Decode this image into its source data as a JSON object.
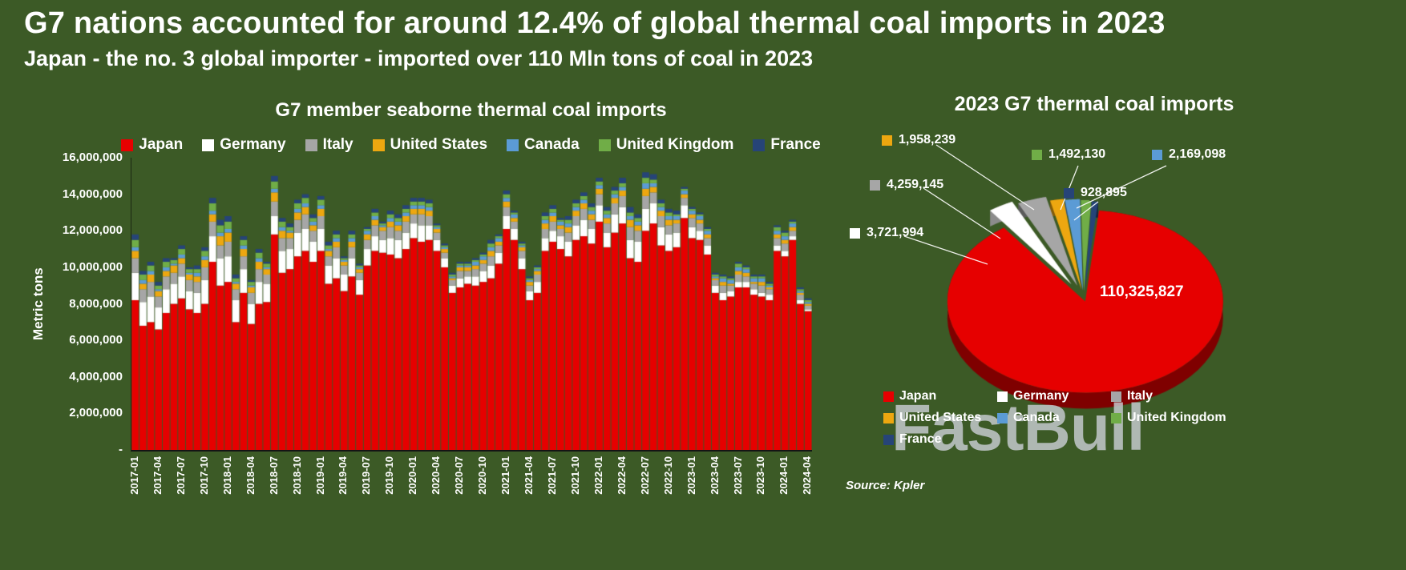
{
  "page": {
    "background": "#3c5a26"
  },
  "header": {
    "title": "G7 nations accounted for around 12.4% of global thermal coal imports in 2023",
    "subtitle": "Japan - the no. 3 global importer - imported over 110 Mln tons of coal in 2023"
  },
  "source": "Source: Kpler",
  "watermark": "FastBull",
  "chart_data": [
    {
      "type": "bar",
      "stacked": true,
      "title": "G7 member seaborne thermal coal imports",
      "ylabel": "Metric tons",
      "xlabel": "",
      "ylim": [
        0,
        16000000
      ],
      "grid": false,
      "legend_position": "top",
      "values_unit": "million metric tons",
      "y_ticks_top_to_bottom": [
        "16,000,000",
        "14,000,000",
        "12,000,000",
        "10,000,000",
        "8,000,000",
        "6,000,000",
        "4,000,000",
        "2,000,000",
        "-"
      ],
      "x_tick_step": 3,
      "categories": [
        "2017-01",
        "2017-02",
        "2017-03",
        "2017-04",
        "2017-05",
        "2017-06",
        "2017-07",
        "2017-08",
        "2017-09",
        "2017-10",
        "2017-11",
        "2017-12",
        "2018-01",
        "2018-02",
        "2018-03",
        "2018-04",
        "2018-05",
        "2018-06",
        "2018-07",
        "2018-08",
        "2018-09",
        "2018-10",
        "2018-11",
        "2018-12",
        "2019-01",
        "2019-02",
        "2019-03",
        "2019-04",
        "2019-05",
        "2019-06",
        "2019-07",
        "2019-08",
        "2019-09",
        "2019-10",
        "2019-11",
        "2019-12",
        "2020-01",
        "2020-02",
        "2020-03",
        "2020-04",
        "2020-05",
        "2020-06",
        "2020-07",
        "2020-08",
        "2020-09",
        "2020-10",
        "2020-11",
        "2020-12",
        "2021-01",
        "2021-02",
        "2021-03",
        "2021-04",
        "2021-05",
        "2021-06",
        "2021-07",
        "2021-08",
        "2021-09",
        "2021-10",
        "2021-11",
        "2021-12",
        "2022-01",
        "2022-02",
        "2022-03",
        "2022-04",
        "2022-05",
        "2022-06",
        "2022-07",
        "2022-08",
        "2022-09",
        "2022-10",
        "2022-11",
        "2022-12",
        "2023-01",
        "2023-02",
        "2023-03",
        "2023-04",
        "2023-05",
        "2023-06",
        "2023-07",
        "2023-08",
        "2023-09",
        "2023-10",
        "2023-11",
        "2023-12",
        "2024-01",
        "2024-02",
        "2024-03",
        "2024-04"
      ],
      "series": [
        {
          "name": "Japan",
          "color": "#e60000",
          "values": [
            8.2,
            6.8,
            7.0,
            6.6,
            7.5,
            8.0,
            8.3,
            7.7,
            7.5,
            8.0,
            10.3,
            9.0,
            9.2,
            7.0,
            8.6,
            6.9,
            8.0,
            8.1,
            11.8,
            9.7,
            9.9,
            10.6,
            10.9,
            10.3,
            10.9,
            9.1,
            9.4,
            8.7,
            9.5,
            8.5,
            10.1,
            10.9,
            10.8,
            10.7,
            10.5,
            11.0,
            11.6,
            11.4,
            11.5,
            10.9,
            10.0,
            8.6,
            8.9,
            9.1,
            9.0,
            9.2,
            9.4,
            10.2,
            12.1,
            11.5,
            9.9,
            8.2,
            8.6,
            10.9,
            11.4,
            11.0,
            10.6,
            11.5,
            11.7,
            11.3,
            12.5,
            11.1,
            11.9,
            12.4,
            10.5,
            10.3,
            12.0,
            12.4,
            11.2,
            10.9,
            11.1,
            12.7,
            11.6,
            11.5,
            10.7,
            8.6,
            8.2,
            8.4,
            8.9,
            8.9,
            8.5,
            8.4,
            8.2,
            10.9,
            10.6,
            11.5,
            8.0,
            7.6
          ]
        },
        {
          "name": "Germany",
          "color": "#ffffff",
          "values": [
            1.5,
            1.3,
            1.4,
            1.2,
            1.3,
            1.1,
            1.2,
            1.0,
            1.1,
            1.3,
            1.4,
            1.5,
            1.4,
            1.2,
            1.3,
            1.1,
            1.2,
            1.0,
            1.0,
            1.2,
            1.1,
            1.3,
            1.2,
            1.1,
            1.2,
            1.0,
            1.1,
            0.9,
            1.0,
            0.8,
            0.9,
            0.8,
            0.7,
            0.9,
            1.0,
            0.9,
            0.8,
            0.9,
            0.8,
            0.6,
            0.5,
            0.4,
            0.5,
            0.4,
            0.5,
            0.6,
            0.7,
            0.6,
            0.7,
            0.6,
            0.6,
            0.5,
            0.6,
            0.7,
            0.6,
            0.7,
            0.8,
            0.8,
            0.9,
            0.8,
            0.9,
            0.8,
            1.0,
            0.9,
            1.0,
            1.1,
            1.2,
            1.1,
            1.0,
            0.9,
            0.8,
            0.7,
            0.6,
            0.5,
            0.5,
            0.4,
            0.4,
            0.3,
            0.3,
            0.3,
            0.3,
            0.2,
            0.3,
            0.3,
            0.3,
            0.2,
            0.2,
            0.1
          ]
        },
        {
          "name": "Italy",
          "color": "#a6a6a6",
          "values": [
            0.8,
            0.7,
            0.8,
            0.6,
            0.7,
            0.6,
            0.7,
            0.6,
            0.6,
            0.7,
            0.8,
            0.7,
            0.8,
            0.6,
            0.7,
            0.6,
            0.7,
            0.5,
            0.8,
            0.7,
            0.6,
            0.7,
            0.8,
            0.6,
            0.7,
            0.5,
            0.6,
            0.5,
            0.6,
            0.4,
            0.5,
            0.6,
            0.5,
            0.6,
            0.5,
            0.6,
            0.5,
            0.6,
            0.5,
            0.4,
            0.3,
            0.3,
            0.4,
            0.3,
            0.4,
            0.4,
            0.5,
            0.4,
            0.5,
            0.4,
            0.4,
            0.3,
            0.4,
            0.5,
            0.5,
            0.4,
            0.5,
            0.5,
            0.6,
            0.5,
            0.6,
            0.5,
            0.6,
            0.6,
            0.7,
            0.6,
            0.7,
            0.6,
            0.6,
            0.5,
            0.5,
            0.4,
            0.5,
            0.4,
            0.4,
            0.3,
            0.4,
            0.3,
            0.4,
            0.3,
            0.3,
            0.4,
            0.3,
            0.4,
            0.4,
            0.3,
            0.3,
            0.2
          ]
        },
        {
          "name": "United States",
          "color": "#eda710",
          "values": [
            0.4,
            0.3,
            0.4,
            0.3,
            0.3,
            0.4,
            0.3,
            0.3,
            0.3,
            0.4,
            0.4,
            0.5,
            0.5,
            0.3,
            0.4,
            0.3,
            0.4,
            0.3,
            0.5,
            0.4,
            0.3,
            0.4,
            0.4,
            0.3,
            0.4,
            0.3,
            0.3,
            0.2,
            0.3,
            0.2,
            0.3,
            0.3,
            0.2,
            0.3,
            0.3,
            0.3,
            0.3,
            0.3,
            0.3,
            0.2,
            0.2,
            0.1,
            0.2,
            0.2,
            0.2,
            0.2,
            0.3,
            0.2,
            0.3,
            0.2,
            0.2,
            0.2,
            0.2,
            0.3,
            0.3,
            0.2,
            0.3,
            0.3,
            0.3,
            0.3,
            0.3,
            0.3,
            0.3,
            0.3,
            0.4,
            0.3,
            0.4,
            0.3,
            0.3,
            0.3,
            0.2,
            0.2,
            0.2,
            0.2,
            0.2,
            0.1,
            0.2,
            0.1,
            0.2,
            0.2,
            0.1,
            0.2,
            0.1,
            0.2,
            0.2,
            0.2,
            0.1,
            0.1
          ]
        },
        {
          "name": "Canada",
          "color": "#5b9bd5",
          "values": [
            0.2,
            0.2,
            0.2,
            0.1,
            0.2,
            0.1,
            0.2,
            0.1,
            0.2,
            0.2,
            0.2,
            0.2,
            0.2,
            0.1,
            0.2,
            0.1,
            0.2,
            0.1,
            0.2,
            0.2,
            0.1,
            0.2,
            0.2,
            0.2,
            0.2,
            0.1,
            0.2,
            0.1,
            0.2,
            0.1,
            0.2,
            0.2,
            0.1,
            0.2,
            0.2,
            0.2,
            0.2,
            0.2,
            0.2,
            0.1,
            0.1,
            0.1,
            0.1,
            0.1,
            0.2,
            0.2,
            0.2,
            0.2,
            0.2,
            0.2,
            0.1,
            0.1,
            0.1,
            0.2,
            0.2,
            0.2,
            0.2,
            0.2,
            0.2,
            0.2,
            0.2,
            0.2,
            0.2,
            0.2,
            0.2,
            0.2,
            0.3,
            0.2,
            0.2,
            0.2,
            0.2,
            0.2,
            0.2,
            0.2,
            0.2,
            0.1,
            0.2,
            0.2,
            0.2,
            0.2,
            0.2,
            0.2,
            0.1,
            0.2,
            0.2,
            0.2,
            0.1,
            0.1
          ]
        },
        {
          "name": "United Kingdom",
          "color": "#70ad47",
          "values": [
            0.4,
            0.3,
            0.3,
            0.2,
            0.3,
            0.2,
            0.3,
            0.2,
            0.2,
            0.3,
            0.4,
            0.4,
            0.4,
            0.2,
            0.3,
            0.2,
            0.3,
            0.2,
            0.4,
            0.3,
            0.2,
            0.3,
            0.3,
            0.2,
            0.3,
            0.2,
            0.2,
            0.1,
            0.2,
            0.1,
            0.1,
            0.2,
            0.1,
            0.2,
            0.2,
            0.2,
            0.2,
            0.2,
            0.2,
            0.1,
            0.1,
            0.1,
            0.1,
            0.1,
            0.1,
            0.1,
            0.2,
            0.1,
            0.2,
            0.1,
            0.1,
            0.1,
            0.1,
            0.2,
            0.2,
            0.1,
            0.2,
            0.2,
            0.2,
            0.2,
            0.2,
            0.2,
            0.2,
            0.2,
            0.2,
            0.2,
            0.3,
            0.2,
            0.2,
            0.2,
            0.1,
            0.1,
            0.1,
            0.1,
            0.1,
            0.1,
            0.1,
            0.1,
            0.2,
            0.1,
            0.1,
            0.1,
            0.1,
            0.2,
            0.2,
            0.1,
            0.1,
            0.1
          ]
        },
        {
          "name": "France",
          "color": "#264478",
          "values": [
            0.3,
            0.2,
            0.2,
            0.2,
            0.2,
            0.1,
            0.2,
            0.1,
            0.2,
            0.2,
            0.3,
            0.3,
            0.3,
            0.2,
            0.2,
            0.1,
            0.2,
            0.1,
            0.3,
            0.2,
            0.2,
            0.2,
            0.2,
            0.2,
            0.2,
            0.2,
            0.2,
            0.1,
            0.2,
            0.1,
            0.1,
            0.2,
            0.1,
            0.2,
            0.2,
            0.2,
            0.2,
            0.2,
            0.2,
            0.1,
            0.1,
            0.1,
            0.1,
            0.1,
            0.1,
            0.1,
            0.2,
            0.1,
            0.2,
            0.1,
            0.1,
            0.1,
            0.1,
            0.2,
            0.2,
            0.1,
            0.2,
            0.2,
            0.2,
            0.2,
            0.2,
            0.2,
            0.2,
            0.3,
            0.3,
            0.2,
            0.3,
            0.3,
            0.2,
            0.2,
            0.2,
            0.1,
            0.1,
            0.1,
            0.1,
            0.1,
            0.1,
            0.1,
            0.1,
            0.1,
            0.1,
            0.1,
            0.1,
            0.1,
            0.1,
            0.1,
            0.1,
            0.1
          ]
        }
      ]
    },
    {
      "type": "pie",
      "title": "2023 G7 thermal coal imports",
      "labels": [
        "Japan",
        "Germany",
        "Italy",
        "United States",
        "Canada",
        "United Kingdom",
        "France"
      ],
      "values": [
        110325827,
        3721994,
        4259145,
        1958239,
        2169098,
        1492130,
        928895
      ],
      "colors": [
        "#e60000",
        "#ffffff",
        "#a6a6a6",
        "#eda710",
        "#5b9bd5",
        "#70ad47",
        "#264478"
      ],
      "inside_label": "110,325,827",
      "callouts": [
        {
          "series": "United States",
          "text": "1,958,239"
        },
        {
          "series": "Italy",
          "text": "4,259,145"
        },
        {
          "series": "Germany",
          "text": "3,721,994"
        },
        {
          "series": "United Kingdom",
          "text": "1,492,130"
        },
        {
          "series": "Canada",
          "text": "2,169,098"
        },
        {
          "series": "France",
          "text": "928,895"
        }
      ],
      "legend_position": "bottom"
    }
  ]
}
